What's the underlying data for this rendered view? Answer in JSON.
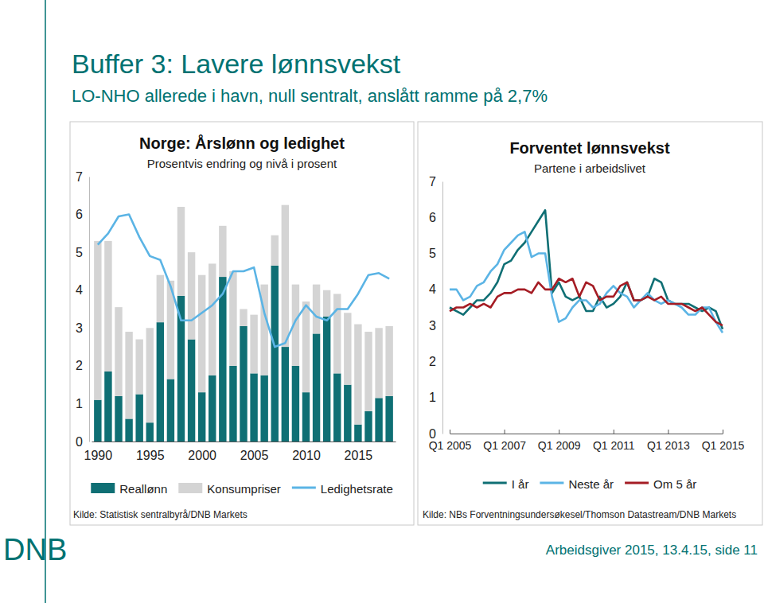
{
  "slide": {
    "title": "Buffer 3: Lavere lønnsvekst",
    "subtitle": "LO-NHO allerede i havn, null sentralt, anslått ramme på 2,7%",
    "footer": "Arbeidsgiver 2015, 13.4.15, side 11",
    "logo": "DNB"
  },
  "chart_data": [
    {
      "type": "bar",
      "title": "Norge: Årslønn og ledighet",
      "subtitle": "Prosentvis endring og nivå i prosent",
      "source": "Kilde: Statistisk sentralbyrå/DNB Markets",
      "stacked": true,
      "grid": false,
      "legend": "bottom",
      "x": [
        1990,
        1991,
        1992,
        1993,
        1994,
        1995,
        1996,
        1997,
        1998,
        1999,
        2000,
        2001,
        2002,
        2003,
        2004,
        2005,
        2006,
        2007,
        2008,
        2009,
        2010,
        2011,
        2012,
        2013,
        2014,
        2015,
        2016,
        2017,
        2018
      ],
      "xlim": [
        1989.4,
        2018.6
      ],
      "xticks": [
        1990,
        1995,
        2000,
        2005,
        2010,
        2015
      ],
      "ylim": [
        0,
        7
      ],
      "yticks": [
        0,
        1,
        2,
        3,
        4,
        5,
        6,
        7
      ],
      "series": [
        {
          "name": "Reallønn",
          "type": "bar",
          "color": "#0f6f74",
          "values": [
            1.1,
            1.85,
            1.2,
            0.6,
            1.25,
            0.5,
            3.15,
            1.65,
            3.85,
            2.7,
            1.3,
            1.75,
            4.35,
            2.0,
            3.05,
            1.8,
            1.75,
            4.65,
            2.5,
            2.0,
            1.3,
            2.85,
            3.3,
            1.8,
            1.5,
            0.45,
            0.8,
            1.15,
            1.2
          ]
        },
        {
          "name": "Konsumpriser",
          "type": "bar",
          "color": "#d4d4d4",
          "values": [
            4.2,
            3.45,
            2.35,
            2.3,
            1.45,
            2.5,
            1.25,
            2.6,
            2.35,
            2.3,
            3.1,
            2.95,
            1.35,
            2.5,
            0.45,
            1.55,
            2.4,
            0.8,
            3.75,
            2.15,
            2.4,
            1.3,
            0.7,
            2.1,
            1.9,
            2.65,
            2.1,
            1.85,
            1.85
          ]
        },
        {
          "name": "Ledighetsrate",
          "type": "line",
          "color": "#5bb4e5",
          "values": [
            5.2,
            5.5,
            5.95,
            6.0,
            5.4,
            4.9,
            4.8,
            4.1,
            3.2,
            3.2,
            3.4,
            3.6,
            3.9,
            4.5,
            4.5,
            4.6,
            3.4,
            2.5,
            2.6,
            3.2,
            3.6,
            3.3,
            3.2,
            3.5,
            3.5,
            3.9,
            4.4,
            4.45,
            4.3
          ]
        }
      ]
    },
    {
      "type": "line",
      "title": "Forventet lønnsvekst",
      "subtitle": "Partene i arbeidslivet",
      "source": "Kilde: NBs Forventningsundersøkesel/Thomson Datastream/DNB Markets",
      "grid": false,
      "legend": "bottom",
      "categories": [
        "Q1 2005",
        null,
        null,
        null,
        null,
        null,
        null,
        null,
        "Q1 2007",
        null,
        null,
        null,
        null,
        null,
        null,
        null,
        "Q1 2009",
        null,
        null,
        null,
        null,
        null,
        null,
        null,
        "Q1 2011",
        null,
        null,
        null,
        null,
        null,
        null,
        null,
        "Q1 2013",
        null,
        null,
        null,
        null,
        null,
        null,
        null,
        "Q1 2015"
      ],
      "ylim": [
        0,
        7
      ],
      "yticks": [
        0,
        1,
        2,
        3,
        4,
        5,
        6,
        7
      ],
      "series": [
        {
          "name": "I år",
          "color": "#0f6f74",
          "values": [
            3.5,
            3.4,
            3.3,
            3.5,
            3.7,
            3.7,
            3.9,
            4.2,
            4.7,
            4.8,
            5.1,
            5.3,
            5.6,
            5.9,
            6.2,
            3.9,
            4.2,
            3.8,
            3.7,
            3.8,
            3.4,
            3.4,
            3.8,
            3.5,
            3.6,
            3.8,
            4.2,
            3.7,
            3.7,
            3.8,
            4.3,
            4.2,
            3.7,
            3.6,
            3.6,
            3.6,
            3.5,
            3.4,
            3.5,
            3.4,
            2.9
          ]
        },
        {
          "name": "Neste år",
          "color": "#5bb4e5",
          "values": [
            4.0,
            4.0,
            3.7,
            3.8,
            4.1,
            4.2,
            4.5,
            4.7,
            5.1,
            5.3,
            5.5,
            5.6,
            4.9,
            5.0,
            5.0,
            3.8,
            3.1,
            3.2,
            3.5,
            3.7,
            3.7,
            3.5,
            3.6,
            3.9,
            4.1,
            3.9,
            3.8,
            3.5,
            3.7,
            3.9,
            3.7,
            3.6,
            3.7,
            3.6,
            3.5,
            3.3,
            3.3,
            3.5,
            3.5,
            3.1,
            2.8
          ]
        },
        {
          "name": "Om 5 år",
          "color": "#a51c24",
          "values": [
            3.4,
            3.5,
            3.5,
            3.6,
            3.5,
            3.6,
            3.5,
            3.8,
            3.9,
            3.9,
            4.0,
            4.0,
            3.9,
            4.2,
            4.0,
            4.0,
            4.3,
            4.2,
            4.3,
            3.8,
            4.2,
            4.1,
            3.7,
            3.8,
            3.8,
            4.1,
            4.2,
            3.7,
            3.7,
            3.8,
            3.7,
            3.8,
            3.6,
            3.6,
            3.6,
            3.5,
            3.4,
            3.5,
            3.3,
            3.1,
            3.0
          ]
        }
      ]
    }
  ]
}
